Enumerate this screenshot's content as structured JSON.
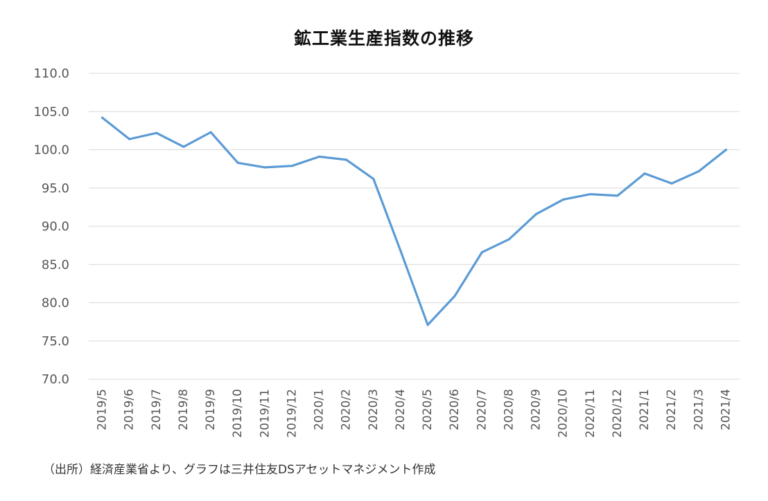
{
  "chart_data": {
    "type": "line",
    "title": "鉱工業生産指数の推移",
    "categories": [
      "2019/5",
      "2019/6",
      "2019/7",
      "2019/8",
      "2019/9",
      "2019/10",
      "2019/11",
      "2019/12",
      "2020/1",
      "2020/2",
      "2020/3",
      "2020/4",
      "2020/5",
      "2020/6",
      "2020/7",
      "2020/8",
      "2020/9",
      "2020/10",
      "2020/11",
      "2020/12",
      "2021/1",
      "2021/2",
      "2021/3",
      "2021/4"
    ],
    "series": [
      {
        "values": [
          104.2,
          101.4,
          102.2,
          100.4,
          102.3,
          98.3,
          97.7,
          97.9,
          99.1,
          98.7,
          96.2,
          86.8,
          77.1,
          80.9,
          86.6,
          88.3,
          91.6,
          93.5,
          94.2,
          94.0,
          96.9,
          95.6,
          97.2,
          100.0
        ],
        "color": "#5b9bd5"
      }
    ],
    "yticks": [
      "70.0",
      "75.0",
      "80.0",
      "85.0",
      "90.0",
      "95.0",
      "100.0",
      "105.0",
      "110.0"
    ],
    "ylim": [
      70,
      110
    ],
    "xlabel": "",
    "ylabel": "",
    "grid": true,
    "gridline_color": "#d9d9d9"
  },
  "source_note": "（出所）経済産業省より、グラフは三井住友DSアセットマネジメント作成"
}
